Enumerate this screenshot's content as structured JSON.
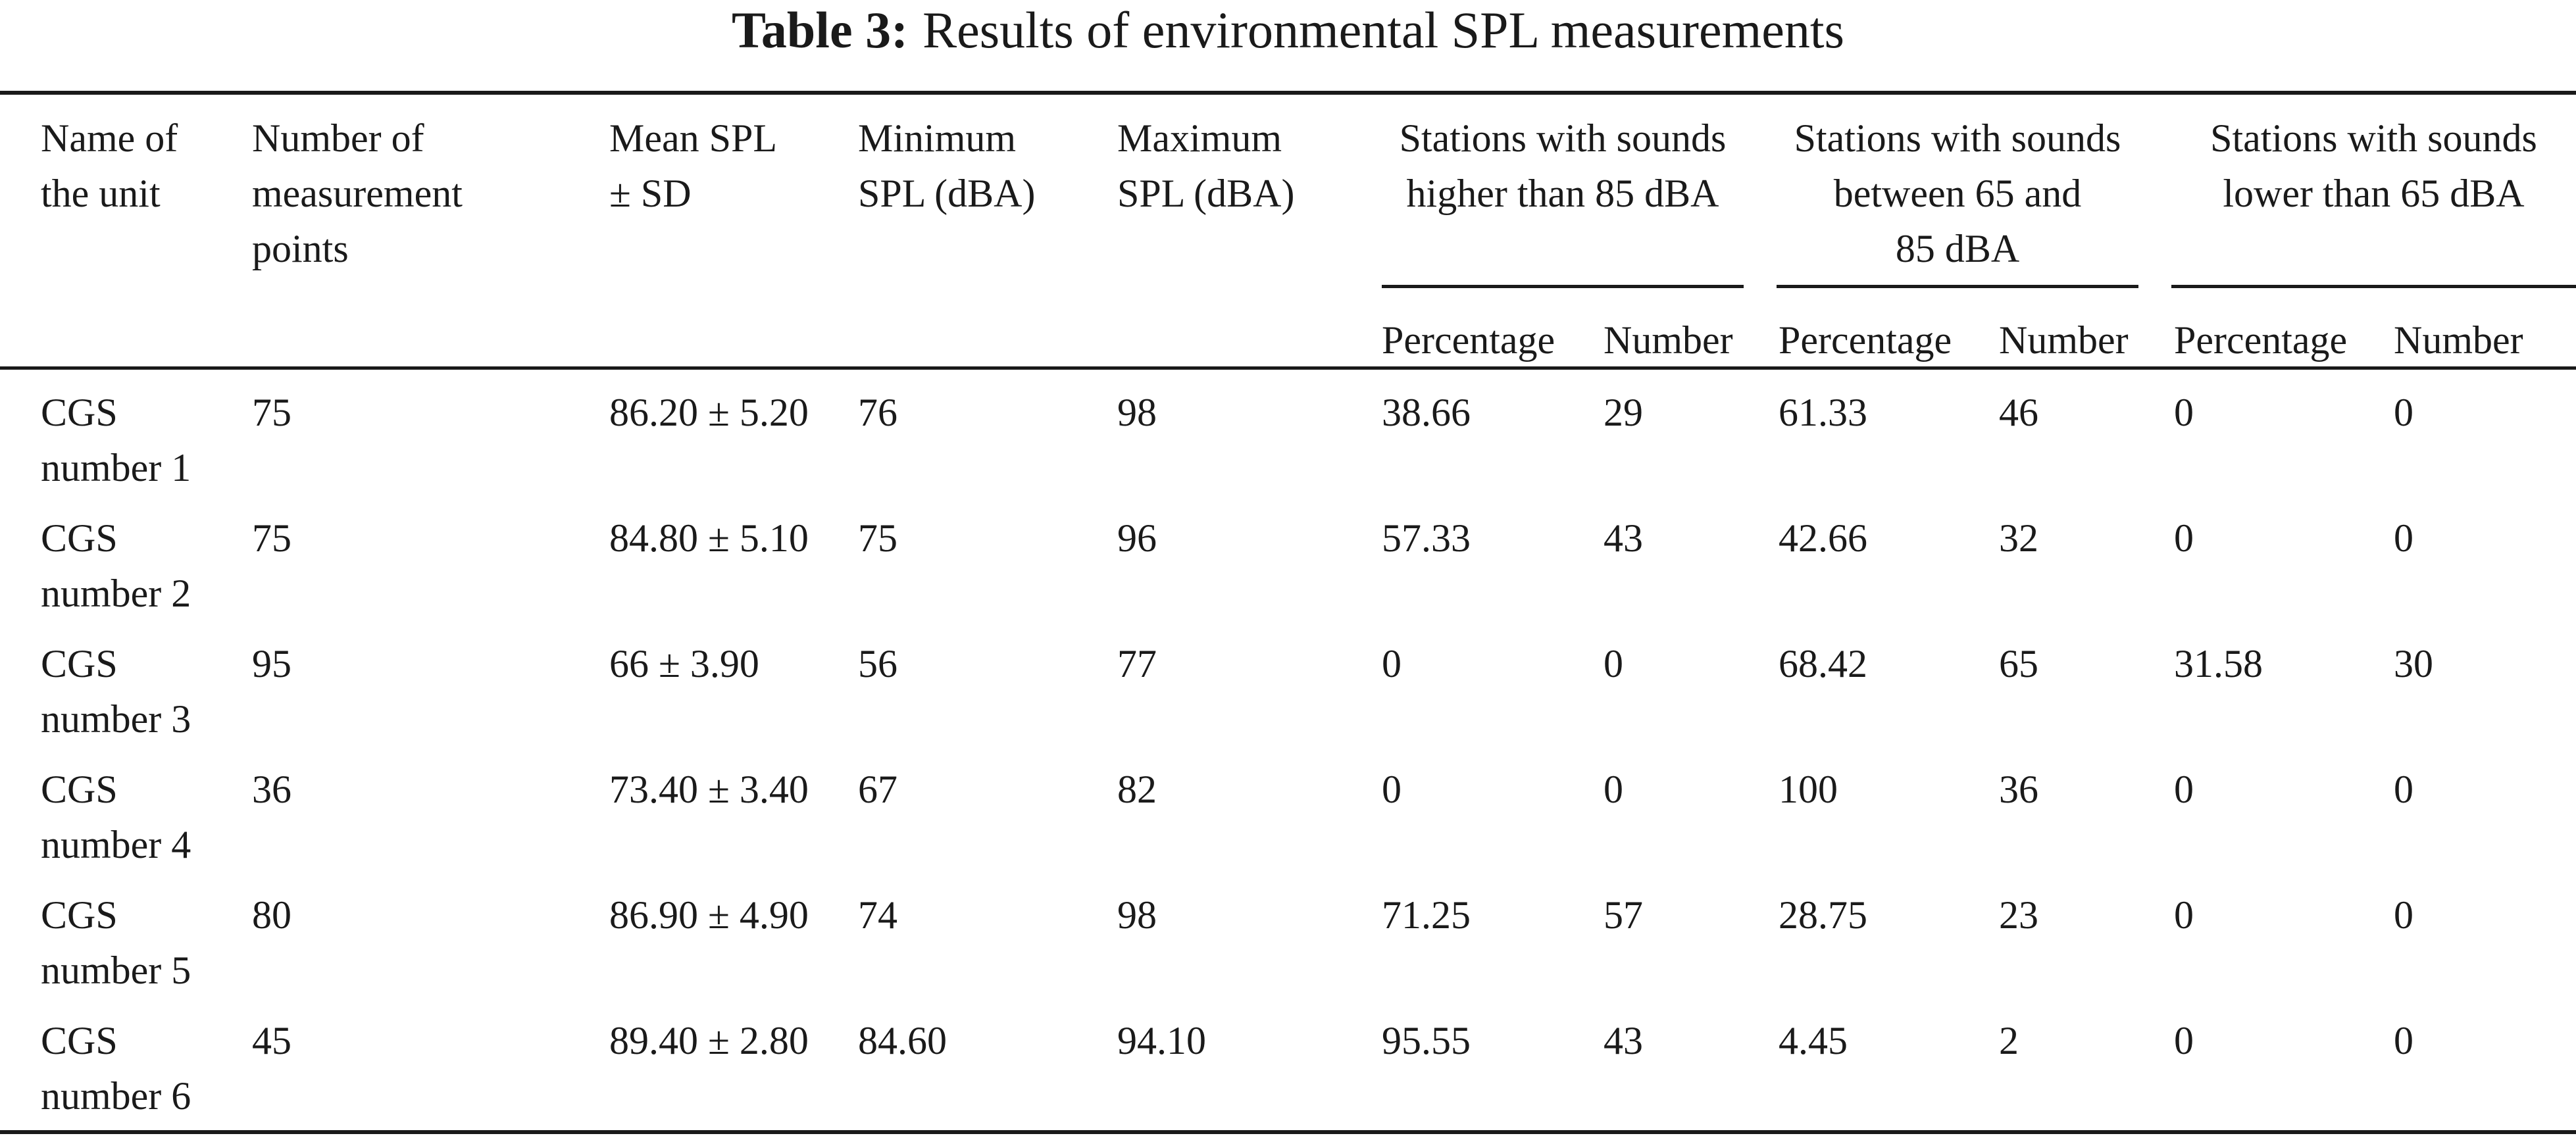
{
  "caption": {
    "label": "Table 3:",
    "title": "Results of environmental SPL measurements"
  },
  "header": {
    "unit_name": [
      "Name of",
      "the unit"
    ],
    "measurement_points": [
      "Number of",
      "measurement",
      "points"
    ],
    "mean_spl": [
      "Mean SPL",
      "± SD"
    ],
    "min_spl": [
      "Minimum",
      "SPL (dBA)"
    ],
    "max_spl": [
      "Maximum",
      "SPL (dBA)"
    ],
    "groups": [
      {
        "lines": [
          "Stations with sounds",
          "higher than 85 dBA"
        ]
      },
      {
        "lines": [
          "Stations with sounds",
          "between 65 and",
          "85 dBA"
        ]
      },
      {
        "lines": [
          "Stations with sounds",
          "lower than 65 dBA"
        ]
      }
    ],
    "sub_percentage": "Percentage",
    "sub_number": "Number"
  },
  "rows": [
    {
      "unit": [
        "CGS",
        "number 1"
      ],
      "points": "75",
      "mean": "86.20 ± 5.20",
      "min": "76",
      "max": "98",
      "hi_pct": "38.66",
      "hi_num": "29",
      "mid_pct": "61.33",
      "mid_num": "46",
      "lo_pct": "0",
      "lo_num": "0"
    },
    {
      "unit": [
        "CGS",
        "number 2"
      ],
      "points": "75",
      "mean": "84.80 ± 5.10",
      "min": "75",
      "max": "96",
      "hi_pct": "57.33",
      "hi_num": "43",
      "mid_pct": "42.66",
      "mid_num": "32",
      "lo_pct": "0",
      "lo_num": "0"
    },
    {
      "unit": [
        "CGS",
        "number 3"
      ],
      "points": "95",
      "mean": "66 ± 3.90",
      "min": "56",
      "max": "77",
      "hi_pct": "0",
      "hi_num": "0",
      "mid_pct": "68.42",
      "mid_num": "65",
      "lo_pct": "31.58",
      "lo_num": "30"
    },
    {
      "unit": [
        "CGS",
        "number 4"
      ],
      "points": "36",
      "mean": "73.40 ± 3.40",
      "min": "67",
      "max": "82",
      "hi_pct": "0",
      "hi_num": "0",
      "mid_pct": "100",
      "mid_num": "36",
      "lo_pct": "0",
      "lo_num": "0"
    },
    {
      "unit": [
        "CGS",
        "number 5"
      ],
      "points": "80",
      "mean": "86.90 ± 4.90",
      "min": "74",
      "max": "98",
      "hi_pct": "71.25",
      "hi_num": "57",
      "mid_pct": "28.75",
      "mid_num": "23",
      "lo_pct": "0",
      "lo_num": "0"
    },
    {
      "unit": [
        "CGS",
        "number 6"
      ],
      "points": "45",
      "mean": "89.40 ± 2.80",
      "min": "84.60",
      "max": "94.10",
      "hi_pct": "95.55",
      "hi_num": "43",
      "mid_pct": "4.45",
      "mid_num": "2",
      "lo_pct": "0",
      "lo_num": "0"
    }
  ]
}
